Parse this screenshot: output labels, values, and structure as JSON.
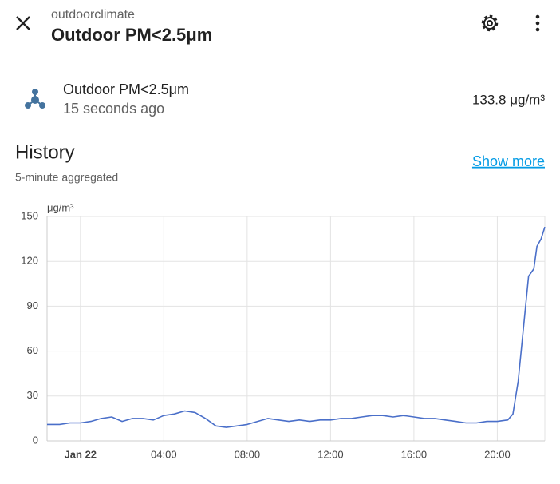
{
  "header": {
    "subtitle": "outdoorclimate",
    "title": "Outdoor PM<2.5μm"
  },
  "entity": {
    "name": "Outdoor PM<2.5μm",
    "updated": "15 seconds ago",
    "state": "133.8 μg/m³"
  },
  "history": {
    "title": "History",
    "subtitle": "5-minute aggregated",
    "link": "Show more"
  },
  "chart_data": {
    "type": "line",
    "y_unit": "μg/m³",
    "color": "#4a6fc9",
    "grid": true,
    "x": [
      -1.6,
      -1,
      -0.5,
      0,
      0.5,
      1,
      1.5,
      2,
      2.5,
      3,
      3.5,
      4,
      4.5,
      5,
      5.5,
      6,
      6.5,
      7,
      7.5,
      8,
      8.5,
      9,
      9.5,
      10,
      10.5,
      11,
      11.5,
      12,
      12.5,
      13,
      13.5,
      14,
      14.5,
      15,
      15.5,
      16,
      16.5,
      17,
      17.5,
      18,
      18.5,
      19,
      19.5,
      20,
      20.5,
      20.75,
      21,
      21.25,
      21.5,
      21.75,
      21.9,
      22.1,
      22.28
    ],
    "values": [
      11,
      11,
      12,
      12,
      13,
      15,
      16,
      13,
      15,
      15,
      14,
      17,
      18,
      20,
      19,
      15,
      10,
      9,
      10,
      11,
      13,
      15,
      14,
      13,
      14,
      13,
      14,
      14,
      15,
      15,
      16,
      17,
      17,
      16,
      17,
      16,
      15,
      15,
      14,
      13,
      12,
      12,
      13,
      13,
      14,
      18,
      40,
      75,
      110,
      115,
      130,
      135,
      143
    ],
    "xlim": [
      -1.6,
      22.28
    ],
    "ylim": [
      0,
      150
    ],
    "xticks": [
      {
        "value": 0,
        "label": "Jan 22"
      },
      {
        "value": 4,
        "label": "04:00"
      },
      {
        "value": 8,
        "label": "08:00"
      },
      {
        "value": 12,
        "label": "12:00"
      },
      {
        "value": 16,
        "label": "16:00"
      },
      {
        "value": 20,
        "label": "20:00"
      }
    ],
    "yticks": [
      0,
      30,
      60,
      90,
      120,
      150
    ]
  }
}
